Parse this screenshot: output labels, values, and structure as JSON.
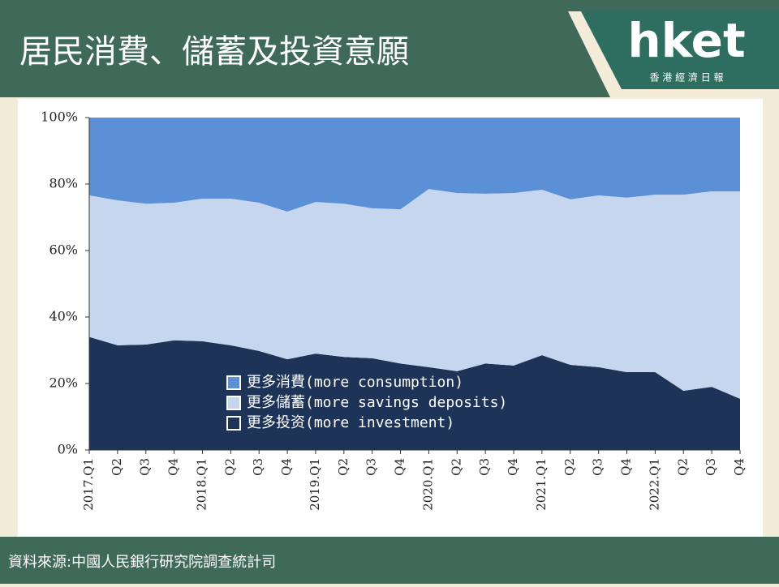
{
  "header": {
    "title": "居民消費、儲蓄及投資意願"
  },
  "logo": {
    "name": "hket",
    "subtitle": "香 港 經 濟 日 報"
  },
  "footer": {
    "source": "資料來源:中國人民銀行研究院調查統計司"
  },
  "chart_data": {
    "type": "stacked_area",
    "categories": [
      "2017.Q1",
      "Q2",
      "Q3",
      "Q4",
      "2018.Q1",
      "Q2",
      "Q3",
      "Q4",
      "2019.Q1",
      "Q2",
      "Q3",
      "Q4",
      "2020.Q1",
      "Q2",
      "Q3",
      "Q4",
      "2021.Q1",
      "Q2",
      "Q3",
      "Q4",
      "2022.Q1",
      "Q2",
      "Q3",
      "Q4"
    ],
    "series": [
      {
        "name": "更多消費(more consumption)",
        "color": "#5b8fd6",
        "values": [
          23.4,
          24.9,
          25.9,
          25.6,
          24.4,
          24.4,
          25.6,
          28.3,
          25.4,
          25.9,
          27.3,
          27.6,
          21.5,
          22.7,
          22.9,
          22.7,
          21.7,
          24.6,
          23.4,
          24.1,
          23.2,
          23.2,
          22.2,
          22.2
        ]
      },
      {
        "name": "更多儲蓄(more savings deposits)",
        "color": "#c6d6ee",
        "values": [
          42.6,
          43.6,
          42.4,
          41.4,
          42.9,
          44.1,
          44.6,
          44.4,
          45.6,
          46.1,
          45.1,
          46.4,
          53.6,
          53.6,
          51.1,
          51.9,
          49.8,
          49.8,
          51.7,
          52.5,
          53.4,
          59,
          58.8,
          62.4
        ]
      },
      {
        "name": "更多投资(more investment)",
        "color": "#1d3358",
        "values": [
          34,
          31.5,
          31.7,
          33,
          32.7,
          31.5,
          29.8,
          27.3,
          29,
          28,
          27.6,
          26,
          24.9,
          23.7,
          26,
          25.4,
          28.5,
          25.6,
          24.9,
          23.4,
          23.4,
          17.8,
          19,
          15.4
        ]
      }
    ],
    "ylim": [
      0,
      100
    ],
    "yticks": [
      {
        "value": 0,
        "label": "0%"
      },
      {
        "value": 20,
        "label": "20%"
      },
      {
        "value": 40,
        "label": "40%"
      },
      {
        "value": 60,
        "label": "60%"
      },
      {
        "value": 80,
        "label": "80%"
      },
      {
        "value": 100,
        "label": "100%"
      }
    ],
    "grid": false
  }
}
